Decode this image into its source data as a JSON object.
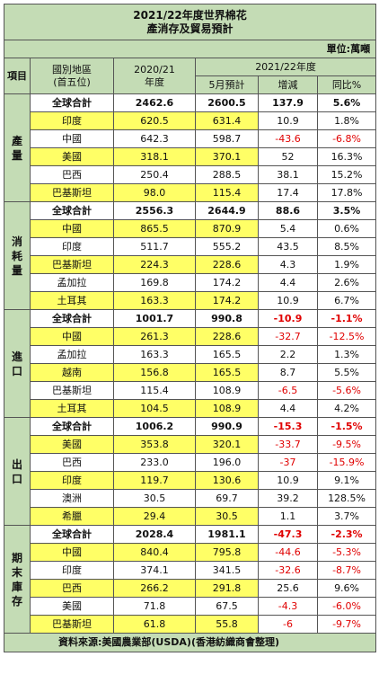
{
  "title": {
    "line1": "2021/22年度世界棉花",
    "line2": "產消存及貿易預計"
  },
  "unit": "單位:萬噸",
  "headers": {
    "item": "項目",
    "region_line1": "國別地區",
    "region_line2": "(首五位)",
    "year_line1": "2020/21",
    "year_line2": "年度",
    "season": "2021/22年度",
    "forecast": "5月預計",
    "change": "增減",
    "yoy": "同比%"
  },
  "sections": [
    {
      "label": "產量",
      "rows": [
        {
          "region": "全球合計",
          "v2021": "2462.6",
          "forecast": "2600.5",
          "change": "137.9",
          "yoy": "5.6%",
          "total": true,
          "yellow": false
        },
        {
          "region": "印度",
          "v2021": "620.5",
          "forecast": "631.4",
          "change": "10.9",
          "yoy": "1.8%",
          "total": false,
          "yellow": true
        },
        {
          "region": "中國",
          "v2021": "642.3",
          "forecast": "598.7",
          "change": "-43.6",
          "yoy": "-6.8%",
          "total": false,
          "yellow": false
        },
        {
          "region": "美國",
          "v2021": "318.1",
          "forecast": "370.1",
          "change": "52",
          "yoy": "16.3%",
          "total": false,
          "yellow": true
        },
        {
          "region": "巴西",
          "v2021": "250.4",
          "forecast": "288.5",
          "change": "38.1",
          "yoy": "15.2%",
          "total": false,
          "yellow": false
        },
        {
          "region": "巴基斯坦",
          "v2021": "98.0",
          "forecast": "115.4",
          "change": "17.4",
          "yoy": "17.8%",
          "total": false,
          "yellow": true
        }
      ]
    },
    {
      "label": "消耗量",
      "rows": [
        {
          "region": "全球合計",
          "v2021": "2556.3",
          "forecast": "2644.9",
          "change": "88.6",
          "yoy": "3.5%",
          "total": true,
          "yellow": false
        },
        {
          "region": "中國",
          "v2021": "865.5",
          "forecast": "870.9",
          "change": "5.4",
          "yoy": "0.6%",
          "total": false,
          "yellow": true
        },
        {
          "region": "印度",
          "v2021": "511.7",
          "forecast": "555.2",
          "change": "43.5",
          "yoy": "8.5%",
          "total": false,
          "yellow": false
        },
        {
          "region": "巴基斯坦",
          "v2021": "224.3",
          "forecast": "228.6",
          "change": "4.3",
          "yoy": "1.9%",
          "total": false,
          "yellow": true
        },
        {
          "region": "孟加拉",
          "v2021": "169.8",
          "forecast": "174.2",
          "change": "4.4",
          "yoy": "2.6%",
          "total": false,
          "yellow": false
        },
        {
          "region": "土耳其",
          "v2021": "163.3",
          "forecast": "174.2",
          "change": "10.9",
          "yoy": "6.7%",
          "total": false,
          "yellow": true
        }
      ]
    },
    {
      "label": "進口",
      "rows": [
        {
          "region": "全球合計",
          "v2021": "1001.7",
          "forecast": "990.8",
          "change": "-10.9",
          "yoy": "-1.1%",
          "total": true,
          "yellow": false
        },
        {
          "region": "中國",
          "v2021": "261.3",
          "forecast": "228.6",
          "change": "-32.7",
          "yoy": "-12.5%",
          "total": false,
          "yellow": true
        },
        {
          "region": "孟加拉",
          "v2021": "163.3",
          "forecast": "165.5",
          "change": "2.2",
          "yoy": "1.3%",
          "total": false,
          "yellow": false
        },
        {
          "region": "越南",
          "v2021": "156.8",
          "forecast": "165.5",
          "change": "8.7",
          "yoy": "5.5%",
          "total": false,
          "yellow": true
        },
        {
          "region": "巴基斯坦",
          "v2021": "115.4",
          "forecast": "108.9",
          "change": "-6.5",
          "yoy": "-5.6%",
          "total": false,
          "yellow": false
        },
        {
          "region": "土耳其",
          "v2021": "104.5",
          "forecast": "108.9",
          "change": "4.4",
          "yoy": "4.2%",
          "total": false,
          "yellow": true
        }
      ]
    },
    {
      "label": "出口",
      "rows": [
        {
          "region": "全球合計",
          "v2021": "1006.2",
          "forecast": "990.9",
          "change": "-15.3",
          "yoy": "-1.5%",
          "total": true,
          "yellow": false
        },
        {
          "region": "美國",
          "v2021": "353.8",
          "forecast": "320.1",
          "change": "-33.7",
          "yoy": "-9.5%",
          "total": false,
          "yellow": true
        },
        {
          "region": "巴西",
          "v2021": "233.0",
          "forecast": "196.0",
          "change": "-37",
          "yoy": "-15.9%",
          "total": false,
          "yellow": false
        },
        {
          "region": "印度",
          "v2021": "119.7",
          "forecast": "130.6",
          "change": "10.9",
          "yoy": "9.1%",
          "total": false,
          "yellow": true
        },
        {
          "region": "澳洲",
          "v2021": "30.5",
          "forecast": "69.7",
          "change": "39.2",
          "yoy": "128.5%",
          "total": false,
          "yellow": false
        },
        {
          "region": "希臘",
          "v2021": "29.4",
          "forecast": "30.5",
          "change": "1.1",
          "yoy": "3.7%",
          "total": false,
          "yellow": true
        }
      ]
    },
    {
      "label": "期末庫存",
      "rows": [
        {
          "region": "全球合計",
          "v2021": "2028.4",
          "forecast": "1981.1",
          "change": "-47.3",
          "yoy": "-2.3%",
          "total": true,
          "yellow": false
        },
        {
          "region": "中國",
          "v2021": "840.4",
          "forecast": "795.8",
          "change": "-44.6",
          "yoy": "-5.3%",
          "total": false,
          "yellow": true
        },
        {
          "region": "印度",
          "v2021": "374.1",
          "forecast": "341.5",
          "change": "-32.6",
          "yoy": "-8.7%",
          "total": false,
          "yellow": false
        },
        {
          "region": "巴西",
          "v2021": "266.2",
          "forecast": "291.8",
          "change": "25.6",
          "yoy": "9.6%",
          "total": false,
          "yellow": true
        },
        {
          "region": "美國",
          "v2021": "71.8",
          "forecast": "67.5",
          "change": "-4.3",
          "yoy": "-6.0%",
          "total": false,
          "yellow": false
        },
        {
          "region": "巴基斯坦",
          "v2021": "61.8",
          "forecast": "55.8",
          "change": "-6",
          "yoy": "-9.7%",
          "total": false,
          "yellow": true
        }
      ]
    }
  ],
  "footer": {
    "label": "資料來源:",
    "text": "美國農業部(USDA)(香港紡織商會整理)"
  },
  "colors": {
    "header_green": "#c4dcb5",
    "highlight_yellow": "#ffff66",
    "negative_red": "#e00000"
  }
}
